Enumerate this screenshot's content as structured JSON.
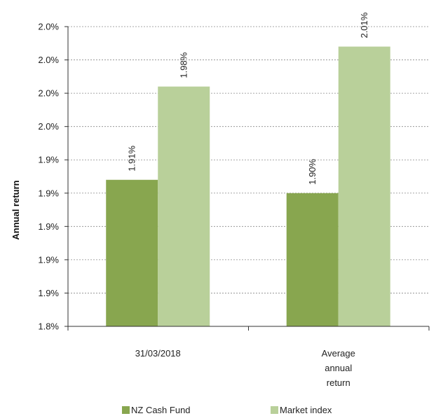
{
  "chart_data": {
    "type": "bar",
    "ylabel": "Annual return",
    "ylim": [
      1.8,
      2.025
    ],
    "grid": true,
    "legend_placement": "bottom",
    "y_tick_labels": [
      "2.0%",
      "2.0%",
      "2.0%",
      "2.0%",
      "1.9%",
      "1.9%",
      "1.9%",
      "1.9%",
      "1.9%",
      "1.8%"
    ],
    "categories": [
      [
        "31/03/2018"
      ],
      [
        "Average",
        "annual",
        "return"
      ]
    ],
    "series": [
      {
        "name": "NZ Cash Fund",
        "color": "#88a64f",
        "values": [
          1.91,
          1.9
        ],
        "labels": [
          "1.91%",
          "1.90%"
        ]
      },
      {
        "name": "Market index",
        "color": "#b9d09a",
        "values": [
          1.98,
          2.01
        ],
        "labels": [
          "1.98%",
          "2.01%"
        ]
      }
    ]
  }
}
